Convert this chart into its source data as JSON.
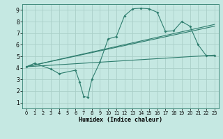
{
  "title": "",
  "xlabel": "Humidex (Indice chaleur)",
  "xlim": [
    -0.5,
    23.5
  ],
  "ylim": [
    0.5,
    9.5
  ],
  "xticks": [
    0,
    1,
    2,
    3,
    4,
    5,
    6,
    7,
    8,
    9,
    10,
    11,
    12,
    13,
    14,
    15,
    16,
    17,
    18,
    19,
    20,
    21,
    22,
    23
  ],
  "yticks": [
    1,
    2,
    3,
    4,
    5,
    6,
    7,
    8,
    9
  ],
  "bg_color": "#c5e8e2",
  "grid_color": "#aacfc8",
  "line_color": "#2e7d6e",
  "curve1_x": [
    0,
    1,
    3,
    4,
    6,
    6.5,
    7,
    7.5,
    8,
    9,
    10,
    11,
    12,
    13,
    14,
    15,
    16,
    17,
    18,
    19,
    20,
    21,
    22,
    23
  ],
  "curve1_y": [
    4.1,
    4.4,
    3.9,
    3.5,
    3.8,
    2.8,
    1.55,
    1.45,
    3.0,
    4.5,
    6.5,
    6.7,
    8.5,
    9.1,
    9.15,
    9.1,
    8.8,
    7.15,
    7.2,
    8.0,
    7.6,
    6.0,
    5.05,
    5.05
  ],
  "line2_x": [
    0,
    23
  ],
  "line2_y": [
    4.1,
    7.6
  ],
  "line3_x": [
    0,
    23
  ],
  "line3_y": [
    4.1,
    7.75
  ],
  "line4_x": [
    0,
    23
  ],
  "line4_y": [
    4.1,
    5.1
  ]
}
